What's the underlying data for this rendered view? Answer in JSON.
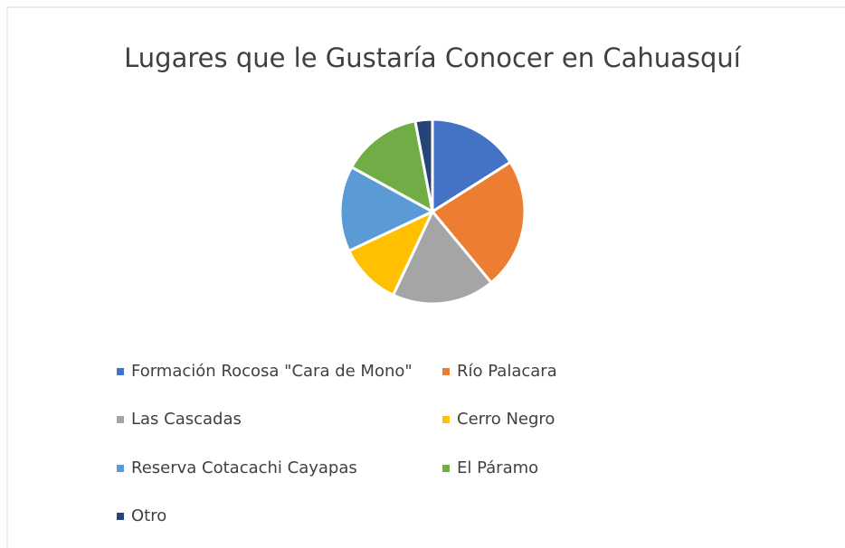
{
  "chart_data": {
    "type": "pie",
    "title": "Lugares que le Gustaría Conocer en Cahuasquí",
    "categories": [
      "Formación Rocosa \"Cara de Mono\"",
      "Río Palacara",
      "Las Cascadas",
      "Cerro Negro",
      "Reserva Cotacachi Cayapas",
      "El Páramo",
      "Otro"
    ],
    "values": [
      16,
      23,
      18,
      11,
      15,
      14,
      3
    ],
    "colors": [
      "#4472c4",
      "#ed7d31",
      "#a5a5a5",
      "#ffc000",
      "#5b9bd5",
      "#70ad47",
      "#264478"
    ],
    "legend": "bottom"
  }
}
